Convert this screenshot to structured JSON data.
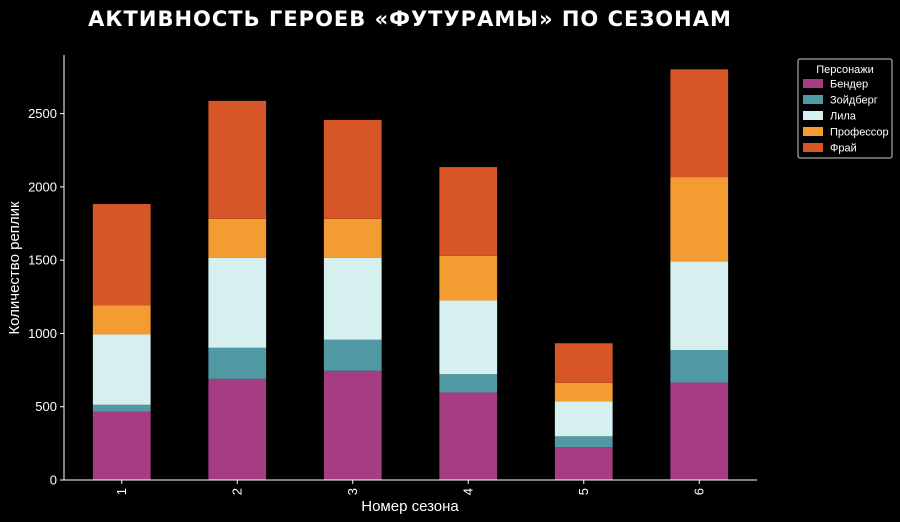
{
  "chart_data": {
    "type": "bar",
    "stacked": true,
    "title": "АКТИВНОСТЬ ГЕРОЕВ «ФУТУРАМЫ» ПО СЕЗОНАМ",
    "xlabel": "Номер сезона",
    "ylabel": "Количество реплик",
    "categories": [
      "1",
      "2",
      "3",
      "4",
      "5",
      "6"
    ],
    "ylim": [
      0,
      2900
    ],
    "yticks": [
      0,
      500,
      1000,
      1500,
      2000,
      2500
    ],
    "grid": false,
    "legend": {
      "title": "Персонажи",
      "placement": "upper-right-outside"
    },
    "series": [
      {
        "name": "Бендер",
        "color": "#a63d83",
        "values": [
          465,
          690,
          745,
          597,
          225,
          665
        ]
      },
      {
        "name": "Зойдберг",
        "color": "#5199a3",
        "values": [
          48,
          212,
          212,
          125,
          73,
          222
        ]
      },
      {
        "name": "Лила",
        "color": "#d6f0f0",
        "values": [
          480,
          615,
          560,
          503,
          240,
          605
        ]
      },
      {
        "name": "Профессор",
        "color": "#f39c31",
        "values": [
          200,
          265,
          265,
          305,
          125,
          575
        ]
      },
      {
        "name": "Фрай",
        "color": "#d75628",
        "values": [
          690,
          805,
          675,
          605,
          270,
          735
        ]
      }
    ]
  }
}
